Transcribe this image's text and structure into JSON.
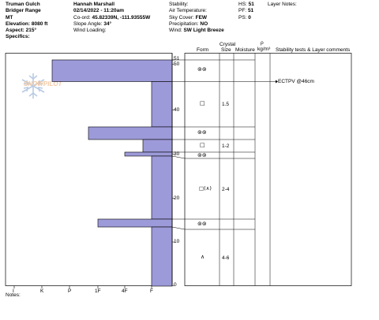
{
  "header": {
    "col1": [
      "Truman Gulch",
      "Bridger Range",
      "MT",
      "Elevation: 8080 ft",
      "Aspect: 215°",
      "Specifics:"
    ],
    "col2": [
      "Hannah Marshall",
      "02/14/2022 - 11:20am"
    ],
    "coord_label": "Co-ord:",
    "coord_value": "45.82339N, -111.93555W",
    "slope_label": "Slope Angle:",
    "slope_value": "34°",
    "wind_loading_label": "Wind Loading:",
    "stability_label": "Stability:",
    "air_temp_label": "Air Temperature:",
    "sky_label": "Sky Cover:",
    "sky_value": "FEW",
    "precip_label": "Precipitation:",
    "precip_value": "NO",
    "wind_label": "Wind:",
    "wind_value": "SW Light Breeze",
    "hs_label": "HS:",
    "hs_value": "51",
    "pf_label": "PF:",
    "pf_value": "51",
    "ps_label": "PS:",
    "ps_value": "0",
    "layer_notes_label": "Layer Notes:"
  },
  "logo_text": "SNOWPILOT",
  "columns": {
    "form": "Form",
    "crystal": "Crystal",
    "size": "Size",
    "moisture": "Moisture",
    "rho_symbol": "ρ",
    "rho_unit": "kg/m³",
    "tests": "Stability tests & Layer comments"
  },
  "hardness_axis": [
    "I",
    "K",
    "P",
    "1F",
    "4F",
    "F"
  ],
  "depth_axis": [
    "51",
    "50",
    "40",
    "30",
    "20",
    "10",
    "0"
  ],
  "test_comment": "ECTPV @46cm",
  "layers": [
    {
      "sizes": ""
    },
    {
      "sizes": "1.5"
    },
    {
      "sizes": ""
    },
    {
      "sizes": "1-2"
    },
    {
      "sizes": ""
    },
    {
      "sizes": "2-4"
    },
    {
      "sizes": ""
    },
    {
      "sizes": "4-6"
    }
  ],
  "notes_label": "Notes:"
}
